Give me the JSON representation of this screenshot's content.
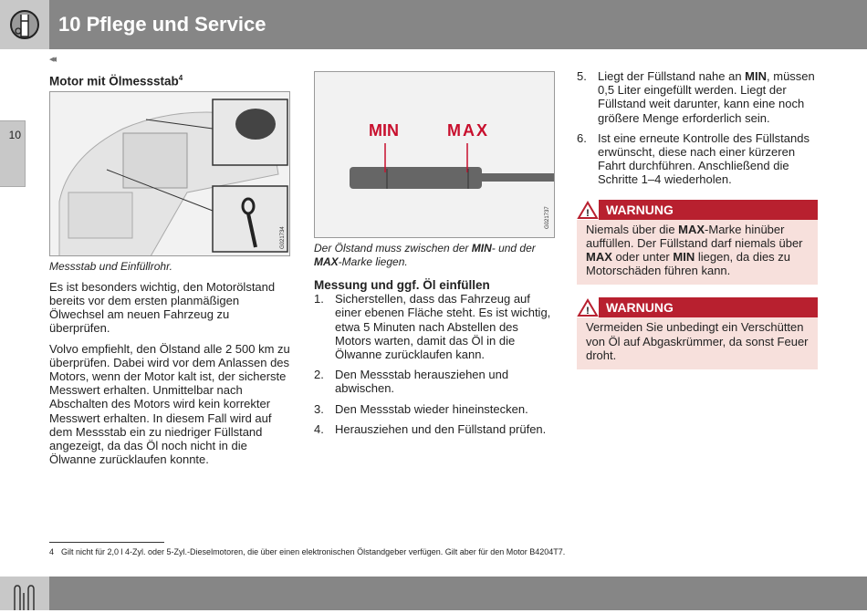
{
  "header": {
    "title": "10 Pflege und Service",
    "icon": "wrench-gear-icon"
  },
  "side_tab": {
    "label": "10"
  },
  "nav": {
    "prev_label": "◂◂"
  },
  "col1": {
    "heading": "Motor mit Ölmessstab",
    "heading_sup": "4",
    "figure_code": "G021734",
    "caption": "Messstab und Einfüllrohr.",
    "paragraphs": [
      "Es ist besonders wichtig, den Motorölstand bereits vor dem ersten planmäßigen Ölwechsel am neuen Fahrzeug zu überprüfen.",
      "Volvo empfiehlt, den Ölstand alle 2 500 km zu überprüfen. Dabei wird vor dem Anlassen des Motors, wenn der Motor kalt ist, der sicherste Messwert erhalten. Unmittelbar nach Abschalten des Motors wird kein korrekter Messwert erhalten. In diesem Fall wird auf dem Messstab ein zu niedriger Füllstand angezeigt, da das Öl noch nicht in die Ölwanne zurücklaufen konnte."
    ]
  },
  "col2": {
    "figure": {
      "min_label": "MIN",
      "max_label": "MAX",
      "code": "G021737",
      "mark_color": "#c8102e"
    },
    "caption_parts": [
      "Der Ölstand muss zwischen der ",
      "MIN",
      "- und der ",
      "MAX",
      "-Marke liegen."
    ],
    "heading": "Messung und ggf. Öl einfüllen",
    "steps": [
      {
        "n": "1.",
        "text": "Sicherstellen, dass das Fahrzeug auf einer ebenen Fläche steht. Es ist wichtig, etwa 5 Minuten nach Abstellen des Motors warten, damit das Öl in die Ölwanne zurücklaufen kann."
      },
      {
        "n": "2.",
        "text": "Den Messstab herausziehen und abwischen."
      },
      {
        "n": "3.",
        "text": "Den Messstab wieder hineinstecken."
      },
      {
        "n": "4.",
        "text": "Herausziehen und den Füllstand prüfen."
      }
    ]
  },
  "col3": {
    "steps": [
      {
        "n": "5.",
        "parts": [
          "Liegt der Füllstand nahe an ",
          "MIN",
          ", müssen 0,5 Liter eingefüllt werden. Liegt der Füllstand weit darunter, kann eine noch größere Menge erforderlich sein."
        ]
      },
      {
        "n": "6.",
        "text": "Ist eine erneute Kontrolle des Füllstands erwünscht, diese nach einer kürzeren Fahrt durchführen. Anschließend die Schritte 1–4 wiederholen."
      }
    ],
    "warnings": [
      {
        "title": "WARNUNG",
        "parts": [
          "Niemals über die ",
          "MAX",
          "-Marke hinüber auffüllen. Der Füllstand darf niemals über ",
          "MAX",
          " oder unter ",
          "MIN",
          " liegen, da dies zu Motorschäden führen kann."
        ]
      },
      {
        "title": "WARNUNG",
        "text": "Vermeiden Sie unbedingt ein Verschütten von Öl auf Abgaskrümmer, da sonst Feuer droht."
      }
    ],
    "warning_color": "#b8202f",
    "warning_bg": "#f7e0dc"
  },
  "footnote": {
    "mark": "4",
    "text": "Gilt nicht für 2,0 l 4-Zyl. oder 5-Zyl.-Dieselmotoren, die über einen elektronischen Ölstandgeber verfügen. Gilt aber für den Motor B4204T7."
  },
  "footer": {
    "icon": "car-seat-logo-icon"
  }
}
